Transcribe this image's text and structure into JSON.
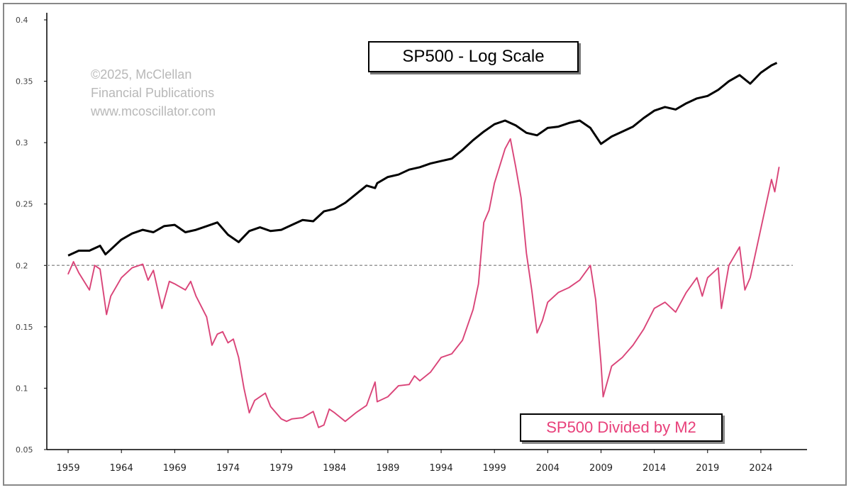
{
  "chart_data": {
    "type": "line",
    "title": "SP500 - Log Scale",
    "annotation_lines": [
      "©2025, McClellan",
      "Financial Publications",
      "www.mcoscillator.com"
    ],
    "reference_line": 0.2,
    "yscale": "linear",
    "ylim": [
      0.05,
      0.4
    ],
    "yticks": [
      "0.4",
      "0.35",
      "0.3",
      "0.25",
      "0.2",
      "0.15",
      "0.1",
      "0.05"
    ],
    "xlim": [
      1957.0,
      2027.0
    ],
    "xticks": [
      "1959",
      "1964",
      "1969",
      "1974",
      "1979",
      "1984",
      "1989",
      "1994",
      "1999",
      "2004",
      "2009",
      "2014",
      "2019",
      "2024"
    ],
    "grid": false,
    "legend_position": "bottom-right",
    "colors": {
      "sp500": "#000000",
      "ratio": "#e8407a",
      "ratio_thin": "#555555",
      "reference": "#999999"
    },
    "series": [
      {
        "name": "",
        "note": "SP500 log-scale overlay (no own axis)",
        "points": [
          [
            1959.0,
            0.208
          ],
          [
            1960.0,
            0.212
          ],
          [
            1961.0,
            0.212
          ],
          [
            1962.0,
            0.216
          ],
          [
            1962.5,
            0.209
          ],
          [
            1963.0,
            0.213
          ],
          [
            1964.0,
            0.221
          ],
          [
            1965.0,
            0.226
          ],
          [
            1966.0,
            0.229
          ],
          [
            1967.0,
            0.227
          ],
          [
            1968.0,
            0.232
          ],
          [
            1969.0,
            0.233
          ],
          [
            1970.0,
            0.227
          ],
          [
            1971.0,
            0.229
          ],
          [
            1972.0,
            0.232
          ],
          [
            1973.0,
            0.235
          ],
          [
            1974.0,
            0.225
          ],
          [
            1975.0,
            0.219
          ],
          [
            1976.0,
            0.228
          ],
          [
            1977.0,
            0.231
          ],
          [
            1978.0,
            0.228
          ],
          [
            1979.0,
            0.229
          ],
          [
            1980.0,
            0.233
          ],
          [
            1981.0,
            0.237
          ],
          [
            1982.0,
            0.236
          ],
          [
            1983.0,
            0.244
          ],
          [
            1984.0,
            0.246
          ],
          [
            1985.0,
            0.251
          ],
          [
            1986.0,
            0.258
          ],
          [
            1987.0,
            0.265
          ],
          [
            1987.8,
            0.263
          ],
          [
            1988.0,
            0.267
          ],
          [
            1989.0,
            0.272
          ],
          [
            1990.0,
            0.274
          ],
          [
            1991.0,
            0.278
          ],
          [
            1992.0,
            0.28
          ],
          [
            1993.0,
            0.283
          ],
          [
            1994.0,
            0.285
          ],
          [
            1995.0,
            0.287
          ],
          [
            1996.0,
            0.294
          ],
          [
            1997.0,
            0.302
          ],
          [
            1998.0,
            0.309
          ],
          [
            1999.0,
            0.315
          ],
          [
            2000.0,
            0.318
          ],
          [
            2001.0,
            0.314
          ],
          [
            2002.0,
            0.308
          ],
          [
            2003.0,
            0.306
          ],
          [
            2004.0,
            0.312
          ],
          [
            2005.0,
            0.313
          ],
          [
            2006.0,
            0.316
          ],
          [
            2007.0,
            0.318
          ],
          [
            2008.0,
            0.312
          ],
          [
            2009.0,
            0.299
          ],
          [
            2010.0,
            0.305
          ],
          [
            2011.0,
            0.309
          ],
          [
            2012.0,
            0.313
          ],
          [
            2013.0,
            0.32
          ],
          [
            2014.0,
            0.326
          ],
          [
            2015.0,
            0.329
          ],
          [
            2016.0,
            0.327
          ],
          [
            2017.0,
            0.332
          ],
          [
            2018.0,
            0.336
          ],
          [
            2019.0,
            0.338
          ],
          [
            2020.0,
            0.343
          ],
          [
            2021.0,
            0.35
          ],
          [
            2022.0,
            0.355
          ],
          [
            2023.0,
            0.348
          ],
          [
            2024.0,
            0.357
          ],
          [
            2025.0,
            0.363
          ],
          [
            2025.5,
            0.365
          ]
        ]
      },
      {
        "name": "SP500 Divided by M2",
        "points": [
          [
            1959.0,
            0.193
          ],
          [
            1959.5,
            0.203
          ],
          [
            1960.0,
            0.194
          ],
          [
            1961.0,
            0.18
          ],
          [
            1961.5,
            0.2
          ],
          [
            1962.0,
            0.197
          ],
          [
            1962.6,
            0.16
          ],
          [
            1963.0,
            0.175
          ],
          [
            1964.0,
            0.19
          ],
          [
            1965.0,
            0.198
          ],
          [
            1966.0,
            0.201
          ],
          [
            1966.5,
            0.188
          ],
          [
            1967.0,
            0.196
          ],
          [
            1967.8,
            0.165
          ],
          [
            1968.5,
            0.187
          ],
          [
            1969.0,
            0.185
          ],
          [
            1970.0,
            0.18
          ],
          [
            1970.5,
            0.187
          ],
          [
            1971.0,
            0.175
          ],
          [
            1972.0,
            0.158
          ],
          [
            1972.5,
            0.135
          ],
          [
            1973.0,
            0.144
          ],
          [
            1973.5,
            0.146
          ],
          [
            1974.0,
            0.137
          ],
          [
            1974.5,
            0.14
          ],
          [
            1975.0,
            0.125
          ],
          [
            1975.5,
            0.1
          ],
          [
            1976.0,
            0.08
          ],
          [
            1976.5,
            0.09
          ],
          [
            1977.5,
            0.096
          ],
          [
            1978.0,
            0.085
          ],
          [
            1979.0,
            0.075
          ],
          [
            1979.5,
            0.073
          ],
          [
            1980.0,
            0.075
          ],
          [
            1981.0,
            0.076
          ],
          [
            1982.0,
            0.081
          ],
          [
            1982.5,
            0.068
          ],
          [
            1983.0,
            0.07
          ],
          [
            1983.5,
            0.083
          ],
          [
            1984.0,
            0.08
          ],
          [
            1985.0,
            0.073
          ],
          [
            1986.0,
            0.08
          ],
          [
            1987.0,
            0.086
          ],
          [
            1987.8,
            0.105
          ],
          [
            1988.0,
            0.089
          ],
          [
            1989.0,
            0.093
          ],
          [
            1990.0,
            0.102
          ],
          [
            1991.0,
            0.103
          ],
          [
            1991.5,
            0.11
          ],
          [
            1992.0,
            0.106
          ],
          [
            1993.0,
            0.113
          ],
          [
            1994.0,
            0.125
          ],
          [
            1995.0,
            0.128
          ],
          [
            1996.0,
            0.139
          ],
          [
            1997.0,
            0.164
          ],
          [
            1997.5,
            0.185
          ],
          [
            1998.0,
            0.235
          ],
          [
            1998.5,
            0.245
          ],
          [
            1999.0,
            0.267
          ],
          [
            2000.0,
            0.295
          ],
          [
            2000.5,
            0.303
          ],
          [
            2001.0,
            0.28
          ],
          [
            2001.5,
            0.255
          ],
          [
            2002.0,
            0.21
          ],
          [
            2002.5,
            0.18
          ],
          [
            2003.0,
            0.145
          ],
          [
            2003.5,
            0.155
          ],
          [
            2004.0,
            0.17
          ],
          [
            2005.0,
            0.178
          ],
          [
            2006.0,
            0.182
          ],
          [
            2007.0,
            0.188
          ],
          [
            2008.0,
            0.2
          ],
          [
            2008.5,
            0.172
          ],
          [
            2009.0,
            0.12
          ],
          [
            2009.2,
            0.093
          ],
          [
            2010.0,
            0.118
          ],
          [
            2011.0,
            0.125
          ],
          [
            2012.0,
            0.135
          ],
          [
            2013.0,
            0.148
          ],
          [
            2014.0,
            0.165
          ],
          [
            2015.0,
            0.17
          ],
          [
            2016.0,
            0.162
          ],
          [
            2017.0,
            0.178
          ],
          [
            2018.0,
            0.19
          ],
          [
            2018.5,
            0.175
          ],
          [
            2019.0,
            0.19
          ],
          [
            2020.0,
            0.198
          ],
          [
            2020.3,
            0.165
          ],
          [
            2021.0,
            0.2
          ],
          [
            2022.0,
            0.215
          ],
          [
            2022.5,
            0.18
          ],
          [
            2023.0,
            0.19
          ],
          [
            2024.0,
            0.23
          ],
          [
            2025.0,
            0.27
          ],
          [
            2025.3,
            0.26
          ],
          [
            2025.7,
            0.28
          ]
        ]
      }
    ]
  }
}
